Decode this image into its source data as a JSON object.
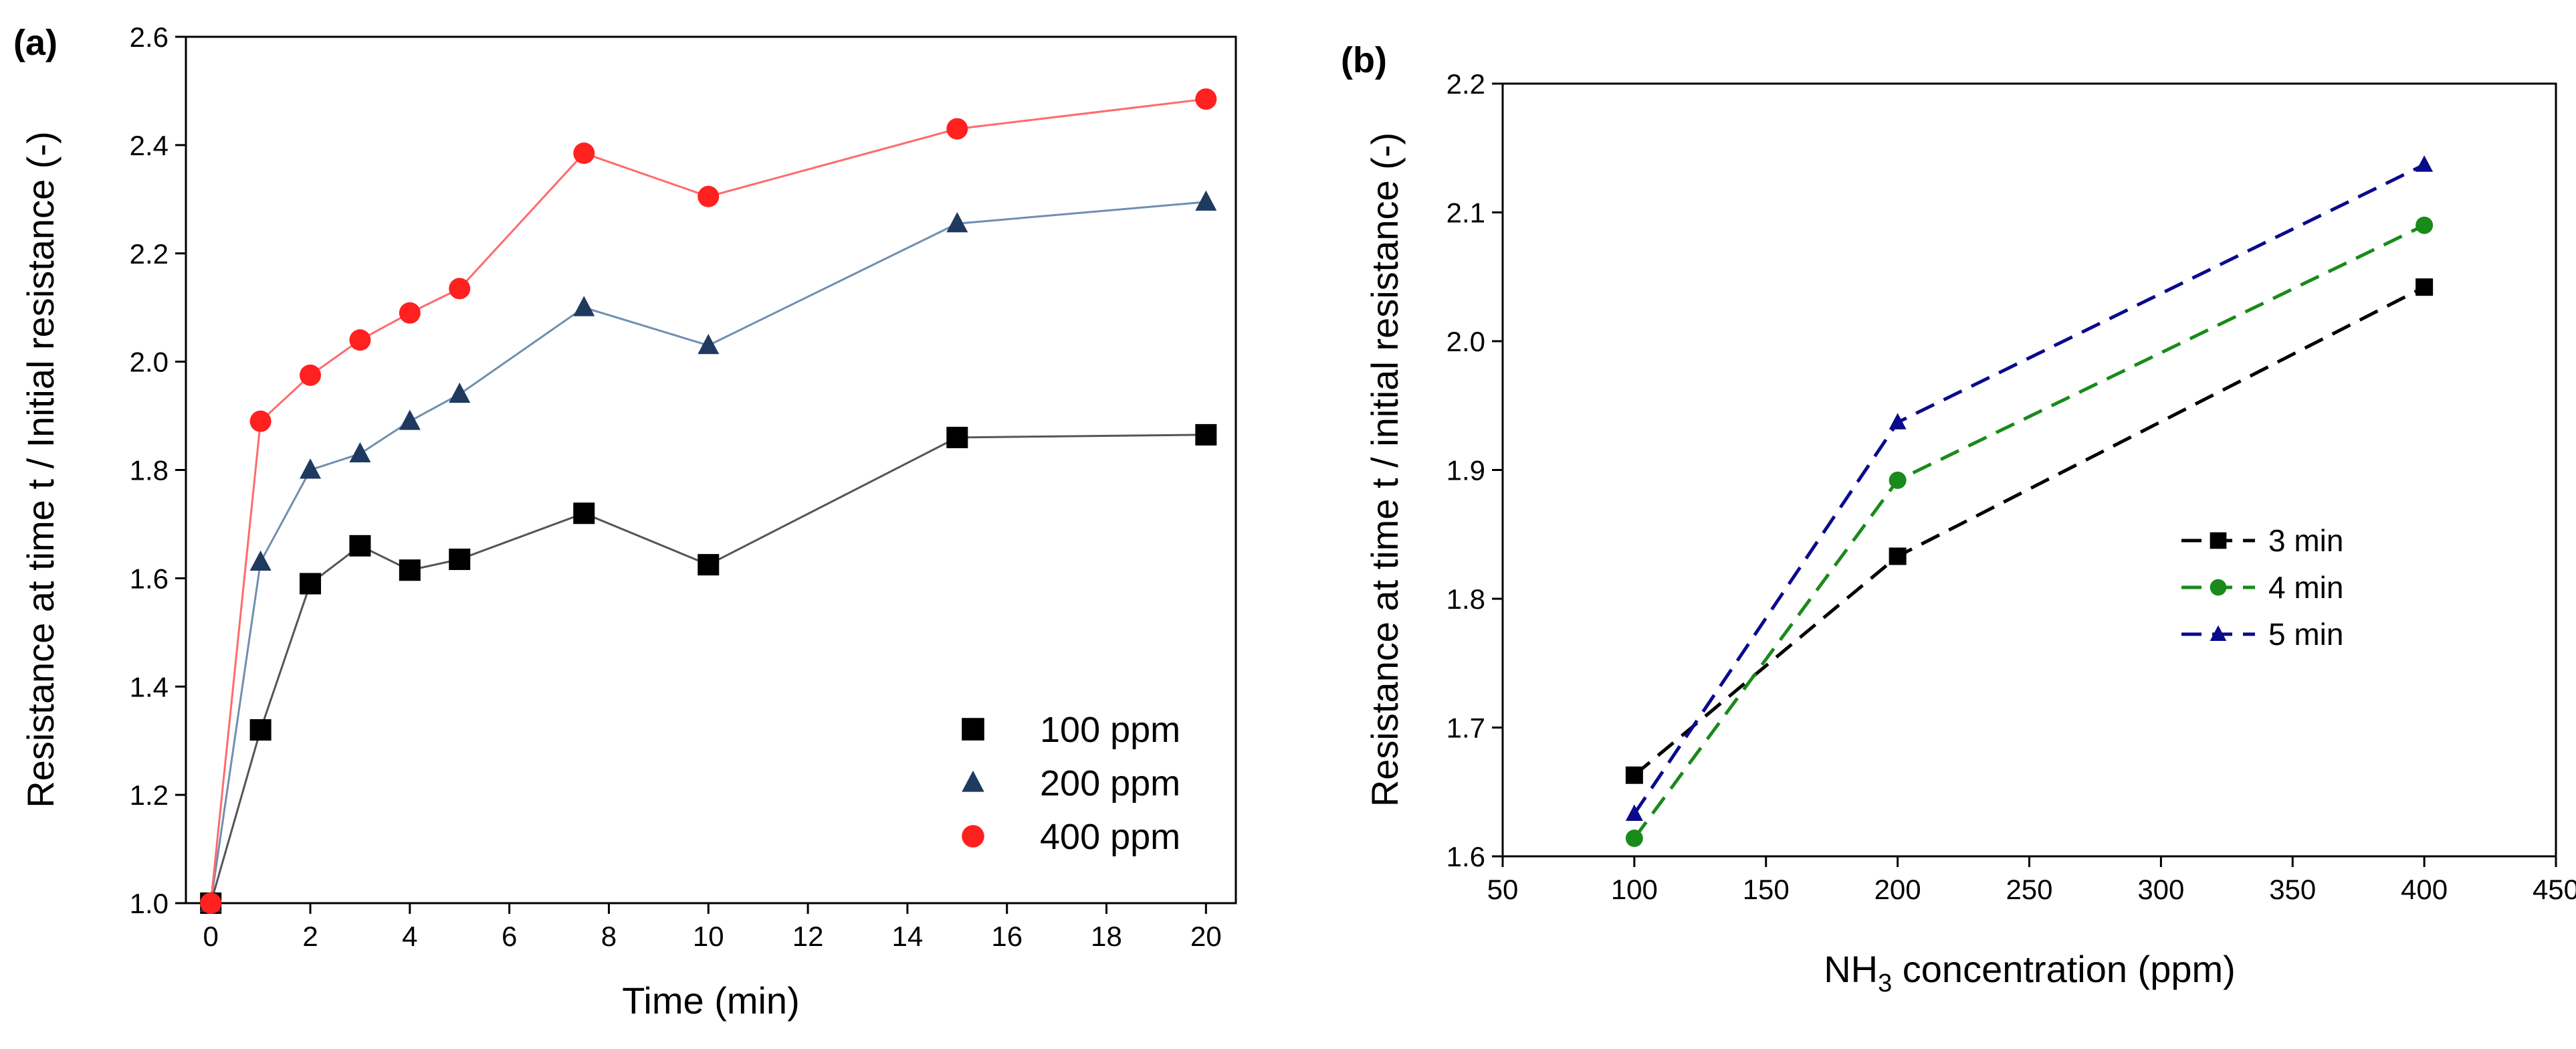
{
  "chart_data": [
    {
      "panel_label": "(a)",
      "type": "line",
      "xlabel": "Time (min)",
      "ylabel": "Resistance at time t / Initial resistance (-)",
      "xlim": [
        -0.5,
        20.6
      ],
      "ylim": [
        1.0,
        2.6
      ],
      "xticks": [
        "0",
        "2",
        "4",
        "6",
        "8",
        "10",
        "12",
        "14",
        "16",
        "18",
        "20"
      ],
      "yticks": [
        "1.0",
        "1.2",
        "1.4",
        "1.6",
        "1.8",
        "2.0",
        "2.2",
        "2.4",
        "2.6"
      ],
      "grid": false,
      "legend_position": "bottom-right",
      "x": [
        0,
        1,
        2,
        3,
        4,
        5,
        7.5,
        10,
        15,
        20
      ],
      "series": [
        {
          "name": "100 ppm",
          "marker": "square",
          "color": "#000000",
          "line_color": "#555555",
          "values": [
            1.0,
            1.32,
            1.59,
            1.66,
            1.615,
            1.635,
            1.72,
            1.625,
            1.86,
            1.865
          ]
        },
        {
          "name": "200 ppm",
          "marker": "triangle",
          "color": "#1f3a5f",
          "line_color": "#6f8fb0",
          "values": [
            1.0,
            1.63,
            1.8,
            1.83,
            1.89,
            1.94,
            2.1,
            2.03,
            2.255,
            2.295
          ]
        },
        {
          "name": "400 ppm",
          "marker": "circle",
          "color": "#ff2020",
          "line_color": "#ff6a6a",
          "values": [
            1.0,
            1.89,
            1.975,
            2.04,
            2.09,
            2.135,
            2.385,
            2.305,
            2.43,
            2.485
          ]
        }
      ]
    },
    {
      "panel_label": "(b)",
      "type": "line",
      "xlabel_main": "NH",
      "xlabel_sub": "3",
      "xlabel_rest": " concentration (ppm)",
      "ylabel": "Resistance at time t / initial resistance (-)",
      "xlim": [
        50,
        450
      ],
      "ylim": [
        1.6,
        2.2
      ],
      "xticks": [
        "50",
        "100",
        "150",
        "200",
        "250",
        "300",
        "350",
        "400",
        "450"
      ],
      "yticks": [
        "1.6",
        "1.7",
        "1.8",
        "1.9",
        "2.0",
        "2.1",
        "2.2"
      ],
      "grid": false,
      "legend_position": "right-middle",
      "x": [
        100,
        200,
        400
      ],
      "series": [
        {
          "name": "3 min",
          "marker": "square",
          "color": "#000000",
          "line_style": "dashed",
          "values": [
            1.663,
            1.833,
            2.042
          ]
        },
        {
          "name": "4 min",
          "marker": "circle",
          "color": "#1a8a1a",
          "line_style": "dashed",
          "values": [
            1.614,
            1.892,
            2.09
          ]
        },
        {
          "name": "5 min",
          "marker": "triangle",
          "color": "#0a0a8c",
          "line_style": "dashed",
          "values": [
            1.633,
            1.937,
            2.137
          ]
        }
      ]
    }
  ]
}
